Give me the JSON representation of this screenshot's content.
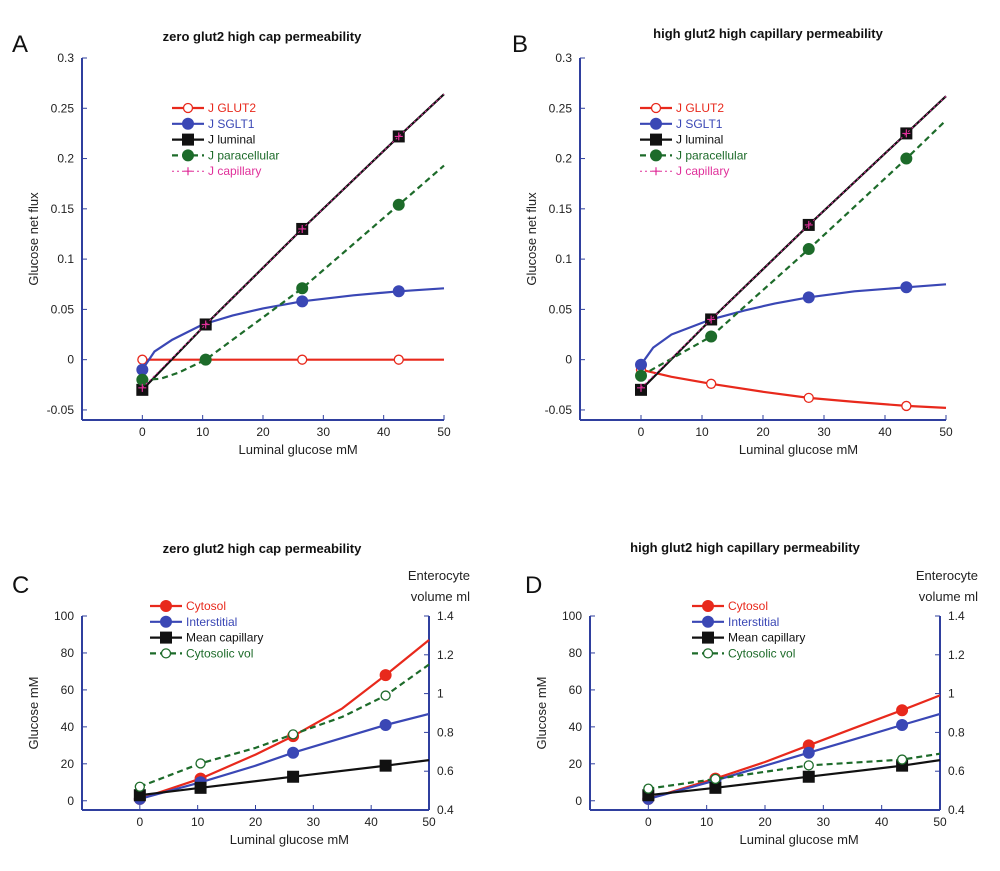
{
  "colors": {
    "axis": "#2f3f9e",
    "red": "#e8291c",
    "blue": "#3a47b5",
    "black": "#111111",
    "green": "#1d6b2a",
    "magenta": "#e0309a"
  },
  "chart_data": [
    {
      "panel": "A",
      "type": "line",
      "title": "zero glut2 high cap permeability",
      "xlabel": "Luminal glucose mM",
      "ylabel": "Glucose net flux",
      "xlim": [
        -10,
        50
      ],
      "ylim": [
        -0.06,
        0.3
      ],
      "xticks": [
        "0",
        "10",
        "20",
        "30",
        "40",
        "50"
      ],
      "yticks": [
        "-0.05",
        "0",
        "0.05",
        "0.1",
        "0.15",
        "0.2",
        "0.25",
        "0.3"
      ],
      "xtick_values": [
        0,
        10,
        20,
        30,
        40,
        50
      ],
      "ytick_values": [
        -0.05,
        0,
        0.05,
        0.1,
        0.15,
        0.2,
        0.25,
        0.3
      ],
      "legend_position": "upper-left",
      "series": [
        {
          "name": "J GLUT2",
          "color": "red",
          "dash": "solid",
          "marker": "circle-open",
          "x": [
            0,
            10,
            20,
            30,
            40,
            50
          ],
          "y": [
            0,
            0,
            0,
            0,
            0,
            0
          ],
          "marker_x": [
            0,
            26.5,
            42.5
          ],
          "marker_y": [
            0,
            0,
            0
          ]
        },
        {
          "name": "J SGLT1",
          "color": "blue",
          "dash": "solid",
          "marker": "circle-filled",
          "x": [
            0,
            2,
            5,
            10,
            15,
            20,
            26.5,
            35,
            42.5,
            50
          ],
          "y": [
            -0.01,
            0.008,
            0.02,
            0.035,
            0.044,
            0.051,
            0.058,
            0.064,
            0.068,
            0.071
          ],
          "marker_x": [
            0,
            10.5,
            26.5,
            42.5
          ],
          "marker_y": [
            -0.01,
            0.035,
            0.058,
            0.068
          ]
        },
        {
          "name": "J luminal",
          "color": "black",
          "dash": "solid",
          "marker": "square-filled",
          "x": [
            0,
            10.5,
            26.5,
            42.5,
            50
          ],
          "y": [
            -0.03,
            0.035,
            0.13,
            0.222,
            0.264
          ],
          "marker_x": [
            0,
            10.5,
            26.5,
            42.5
          ],
          "marker_y": [
            -0.03,
            0.035,
            0.13,
            0.222
          ]
        },
        {
          "name": "J paracellular",
          "color": "green",
          "dash": "dashed",
          "marker": "circle-filled",
          "x": [
            0,
            3,
            6,
            10.5,
            15,
            20,
            26.5,
            35,
            42.5,
            50
          ],
          "y": [
            -0.02,
            -0.019,
            -0.013,
            0,
            0.02,
            0.042,
            0.071,
            0.115,
            0.154,
            0.193
          ],
          "marker_x": [
            0,
            10.5,
            26.5,
            42.5
          ],
          "marker_y": [
            -0.02,
            0,
            0.071,
            0.154
          ]
        },
        {
          "name": "J capillary",
          "color": "magenta",
          "dash": "dotted",
          "marker": "plus",
          "x": [
            0,
            10.5,
            26.5,
            42.5,
            50
          ],
          "y": [
            -0.028,
            0.035,
            0.13,
            0.222,
            0.264
          ],
          "marker_x": [
            0,
            10.5,
            26.5,
            42.5
          ],
          "marker_y": [
            -0.028,
            0.035,
            0.13,
            0.222
          ]
        }
      ]
    },
    {
      "panel": "B",
      "type": "line",
      "title": "high glut2 high capillary permeability",
      "xlabel": "Luminal glucose mM",
      "ylabel": "Glucose net flux",
      "xlim": [
        -10,
        50
      ],
      "ylim": [
        -0.06,
        0.3
      ],
      "xticks": [
        "0",
        "10",
        "20",
        "30",
        "40",
        "50"
      ],
      "yticks": [
        "-0.05",
        "0",
        "0.05",
        "0.1",
        "0.15",
        "0.2",
        "0.25",
        "0.3"
      ],
      "xtick_values": [
        0,
        10,
        20,
        30,
        40,
        50
      ],
      "ytick_values": [
        -0.05,
        0,
        0.05,
        0.1,
        0.15,
        0.2,
        0.25,
        0.3
      ],
      "legend_position": "upper-left",
      "series": [
        {
          "name": "J GLUT2",
          "color": "red",
          "dash": "solid",
          "marker": "circle-open",
          "x": [
            0,
            5,
            11.5,
            20,
            27.5,
            35,
            43.5,
            50
          ],
          "y": [
            -0.01,
            -0.017,
            -0.024,
            -0.032,
            -0.038,
            -0.042,
            -0.046,
            -0.048
          ],
          "marker_x": [
            0,
            11.5,
            27.5,
            43.5
          ],
          "marker_y": [
            -0.01,
            -0.024,
            -0.038,
            -0.046
          ]
        },
        {
          "name": "J SGLT1",
          "color": "blue",
          "dash": "solid",
          "marker": "circle-filled",
          "x": [
            0,
            2,
            5,
            11.5,
            17,
            22,
            27.5,
            35,
            43.5,
            50
          ],
          "y": [
            -0.005,
            0.012,
            0.025,
            0.04,
            0.049,
            0.056,
            0.062,
            0.068,
            0.072,
            0.075
          ],
          "marker_x": [
            0,
            11.5,
            27.5,
            43.5
          ],
          "marker_y": [
            -0.005,
            0.04,
            0.062,
            0.072
          ]
        },
        {
          "name": "J luminal",
          "color": "black",
          "dash": "solid",
          "marker": "square-filled",
          "x": [
            0,
            11.5,
            27.5,
            43.5,
            50
          ],
          "y": [
            -0.03,
            0.04,
            0.134,
            0.225,
            0.262
          ],
          "marker_x": [
            0,
            11.5,
            27.5,
            43.5
          ],
          "marker_y": [
            -0.03,
            0.04,
            0.134,
            0.225
          ]
        },
        {
          "name": "J paracellular",
          "color": "green",
          "dash": "dashed",
          "marker": "circle-filled",
          "x": [
            0,
            11.5,
            27.5,
            43.5,
            50
          ],
          "y": [
            -0.016,
            0.023,
            0.11,
            0.2,
            0.238
          ],
          "marker_x": [
            0,
            11.5,
            27.5,
            43.5
          ],
          "marker_y": [
            -0.016,
            0.023,
            0.11,
            0.2
          ]
        },
        {
          "name": "J capillary",
          "color": "magenta",
          "dash": "dotted",
          "marker": "plus",
          "x": [
            0,
            11.5,
            27.5,
            43.5,
            50
          ],
          "y": [
            -0.028,
            0.04,
            0.134,
            0.225,
            0.262
          ],
          "marker_x": [
            0,
            11.5,
            27.5,
            43.5
          ],
          "marker_y": [
            -0.028,
            0.04,
            0.134,
            0.225
          ]
        }
      ]
    },
    {
      "panel": "C",
      "type": "line",
      "title": "zero glut2 high cap permeability",
      "xlabel": "Luminal glucose mM",
      "ylabel": "Glucose mM",
      "y2label_line1": "Enterocyte",
      "y2label_line2": "volume ml",
      "xlim": [
        -10,
        50
      ],
      "ylim": [
        -5,
        100
      ],
      "y2lim": [
        0.4,
        1.4
      ],
      "xticks": [
        "0",
        "10",
        "20",
        "30",
        "40",
        "50"
      ],
      "yticks": [
        "0",
        "20",
        "40",
        "60",
        "80",
        "100"
      ],
      "y2ticks": [
        "0.4",
        "0.6",
        "0.8",
        "1",
        "1.2",
        "1.4"
      ],
      "xtick_values": [
        0,
        10,
        20,
        30,
        40,
        50
      ],
      "ytick_values": [
        0,
        20,
        40,
        60,
        80,
        100
      ],
      "y2tick_values": [
        0.4,
        0.6,
        0.8,
        1,
        1.2,
        1.4
      ],
      "legend_position": "upper-left",
      "series": [
        {
          "name": "Cytosol",
          "color": "red",
          "dash": "solid",
          "marker": "circle-filled",
          "axis": "left",
          "x": [
            0,
            10.5,
            20,
            26.5,
            35,
            42.5,
            50
          ],
          "y": [
            1,
            12,
            25,
            35,
            50,
            68,
            87
          ],
          "marker_x": [
            0,
            10.5,
            26.5,
            42.5
          ],
          "marker_y": [
            1,
            12,
            35,
            68
          ]
        },
        {
          "name": "Interstitial",
          "color": "blue",
          "dash": "solid",
          "marker": "circle-filled",
          "axis": "left",
          "x": [
            0,
            10.5,
            20,
            26.5,
            35,
            42.5,
            50
          ],
          "y": [
            1,
            10,
            19,
            26,
            34,
            41,
            47
          ],
          "marker_x": [
            0,
            10.5,
            26.5,
            42.5
          ],
          "marker_y": [
            1,
            10,
            26,
            41
          ]
        },
        {
          "name": "Mean capillary",
          "color": "black",
          "dash": "solid",
          "marker": "square-filled",
          "axis": "left",
          "x": [
            0,
            10.5,
            26.5,
            42.5,
            50
          ],
          "y": [
            3,
            7,
            13,
            19,
            22
          ],
          "marker_x": [
            0,
            10.5,
            26.5,
            42.5
          ],
          "marker_y": [
            3,
            7,
            13,
            19
          ]
        },
        {
          "name": "Cytosolic  vol",
          "color": "green",
          "dash": "dashed",
          "marker": "circle-open",
          "axis": "right",
          "x": [
            0,
            10.5,
            20,
            26.5,
            35,
            42.5,
            50
          ],
          "y": [
            0.52,
            0.64,
            0.72,
            0.79,
            0.88,
            0.99,
            1.15
          ],
          "marker_x": [
            0,
            10.5,
            26.5,
            42.5
          ],
          "marker_y": [
            0.52,
            0.64,
            0.79,
            0.99
          ]
        }
      ]
    },
    {
      "panel": "D",
      "type": "line",
      "title": "high glut2 high capillary permeability",
      "xlabel": "Luminal glucose mM",
      "ylabel": "Glucose mM",
      "y2label_line1": "Enterocyte",
      "y2label_line2": "volume ml",
      "xlim": [
        -10,
        50
      ],
      "ylim": [
        -5,
        100
      ],
      "y2lim": [
        0.4,
        1.4
      ],
      "xticks": [
        "0",
        "10",
        "20",
        "30",
        "40",
        "50"
      ],
      "yticks": [
        "0",
        "20",
        "40",
        "60",
        "80",
        "100"
      ],
      "y2ticks": [
        "0.4",
        "0.6",
        "0.8",
        "1",
        "1.2",
        "1.4"
      ],
      "xtick_values": [
        0,
        10,
        20,
        30,
        40,
        50
      ],
      "ytick_values": [
        0,
        20,
        40,
        60,
        80,
        100
      ],
      "y2tick_values": [
        0.4,
        0.6,
        0.8,
        1,
        1.2,
        1.4
      ],
      "legend_position": "upper-left",
      "series": [
        {
          "name": "Cytosol",
          "color": "red",
          "dash": "solid",
          "marker": "circle-filled",
          "axis": "left",
          "x": [
            0,
            11.5,
            20,
            27.5,
            35,
            43.5,
            50
          ],
          "y": [
            1,
            12,
            21,
            30,
            39,
            49,
            57
          ],
          "marker_x": [
            0,
            11.5,
            27.5,
            43.5
          ],
          "marker_y": [
            1,
            12,
            30,
            49
          ]
        },
        {
          "name": "Interstitial",
          "color": "blue",
          "dash": "solid",
          "marker": "circle-filled",
          "axis": "left",
          "x": [
            0,
            11.5,
            20,
            27.5,
            35,
            43.5,
            50
          ],
          "y": [
            1,
            11,
            19,
            26,
            33,
            41,
            47
          ],
          "marker_x": [
            0,
            11.5,
            27.5,
            43.5
          ],
          "marker_y": [
            1,
            11,
            26,
            41
          ]
        },
        {
          "name": "Mean capillary",
          "color": "black",
          "dash": "solid",
          "marker": "square-filled",
          "axis": "left",
          "x": [
            0,
            11.5,
            27.5,
            43.5,
            50
          ],
          "y": [
            3,
            7,
            13,
            19,
            22
          ],
          "marker_x": [
            0,
            11.5,
            27.5,
            43.5
          ],
          "marker_y": [
            3,
            7,
            13,
            19
          ]
        },
        {
          "name": "Cytosolic  vol",
          "color": "green",
          "dash": "dashed",
          "marker": "circle-open",
          "axis": "right",
          "x": [
            0,
            11.5,
            27.5,
            43.5,
            50
          ],
          "y": [
            0.51,
            0.56,
            0.63,
            0.66,
            0.69
          ],
          "marker_x": [
            0,
            11.5,
            27.5,
            43.5
          ],
          "marker_y": [
            0.51,
            0.56,
            0.63,
            0.66
          ]
        }
      ]
    }
  ]
}
